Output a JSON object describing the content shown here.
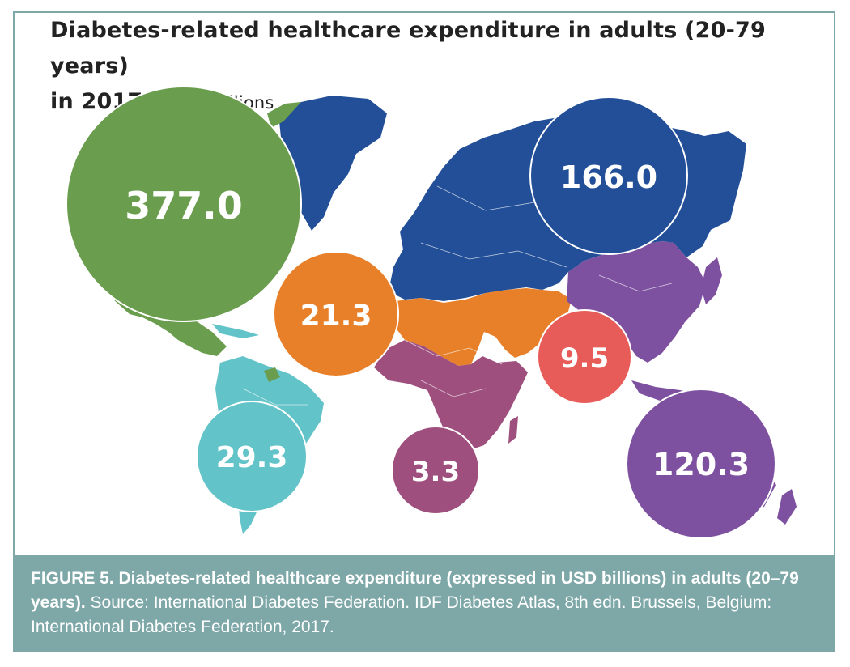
{
  "title": {
    "line1": "Diabetes-related healthcare expenditure in adults (20-79 years)",
    "line2": "in 2017",
    "unit": "USD in billions"
  },
  "caption": {
    "bold": "FIGURE 5. Diabetes-related healthcare expenditure (expressed in USD billions) in adults (20–79 years).",
    "text": " Source: International Diabetes Federation. IDF Diabetes Atlas, 8th edn. Brussels, Belgium: International Diabetes Federation, 2017."
  },
  "colors": {
    "north_america": "#6a9e4e",
    "europe": "#224f97",
    "mena": "#e8802a",
    "africa": "#9e4f7d",
    "south_america": "#62c3c8",
    "south_east_asia": "#e75b58",
    "western_pacific": "#7d51a0",
    "caption_bg": "#7ea7a8"
  },
  "regions": {
    "north_america": {
      "label": "377.0",
      "value": 377.0
    },
    "europe": {
      "label": "166.0",
      "value": 166.0
    },
    "western_pacific": {
      "label": "120.3",
      "value": 120.3
    },
    "south_america": {
      "label": "29.3",
      "value": 29.3
    },
    "mena": {
      "label": "21.3",
      "value": 21.3
    },
    "south_east_asia": {
      "label": "9.5",
      "value": 9.5
    },
    "africa": {
      "label": "3.3",
      "value": 3.3
    }
  }
}
